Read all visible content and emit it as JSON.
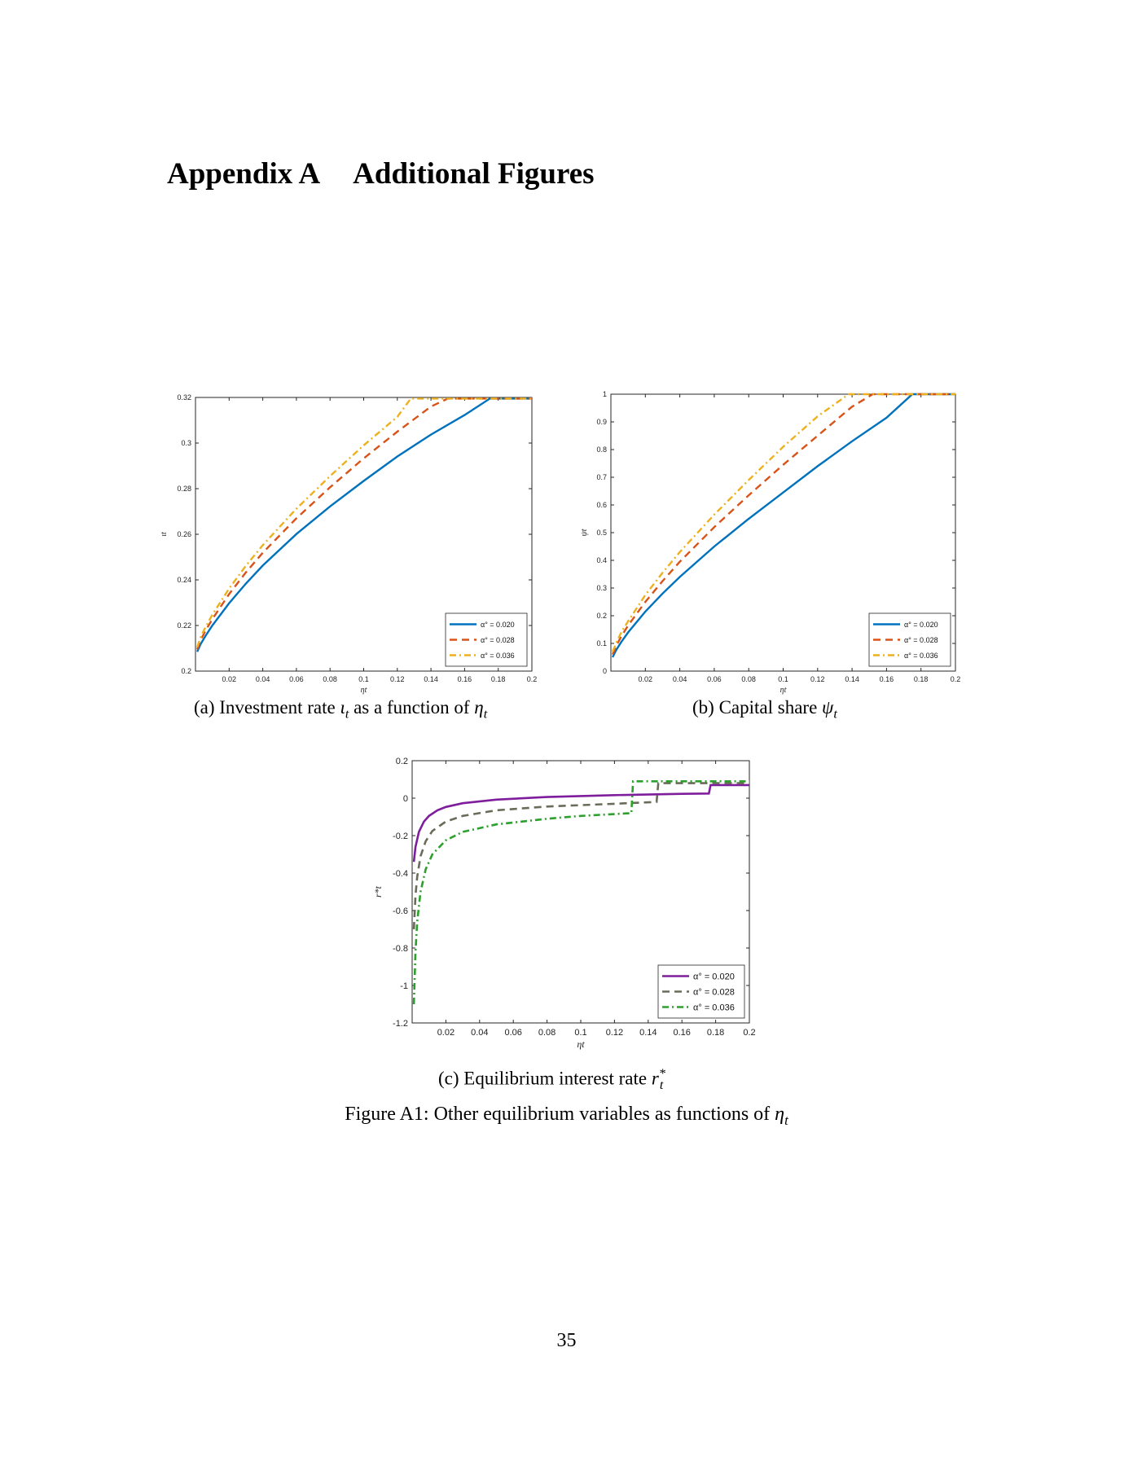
{
  "heading": {
    "number": "Appendix A",
    "title": "Additional Figures"
  },
  "figure_caption": {
    "label": "Figure A1:",
    "text": "Other equilibrium variables as functions of",
    "symbol": "η",
    "sub": "t"
  },
  "page_number": "35",
  "colors": {
    "series_a": "#0072BD",
    "series_b": "#D95319",
    "series_c": "#EDB120",
    "series_c1": "#7E1E9C",
    "series_c2": "#6B6B5A",
    "series_c3": "#2CA02C"
  },
  "subcaptions": {
    "a": {
      "prefix": "(a) Investment rate",
      "symbol": "ι",
      "sub": "t",
      "mid": "as a function of",
      "symbol2": "η",
      "sub2": "t"
    },
    "b": {
      "prefix": "(b) Capital share",
      "symbol": "ψ",
      "sub": "t"
    },
    "c": {
      "prefix": "(c) Equilibrium interest rate",
      "symbol": "r",
      "sup": "*",
      "sub": "t"
    }
  },
  "chart_data": [
    {
      "id": "a",
      "type": "line",
      "xlabel": "ηt",
      "ylabel": "ιt",
      "xlim": [
        0,
        0.2
      ],
      "ylim": [
        0.2,
        0.32
      ],
      "xticks": [
        0.02,
        0.04,
        0.06,
        0.08,
        0.1,
        0.12,
        0.14,
        0.16,
        0.18,
        0.2
      ],
      "xticklabels": [
        "0.02",
        "0.04",
        "0.06",
        "0.08",
        "0.1",
        "0.12",
        "0.14",
        "0.16",
        "0.18",
        "0.2"
      ],
      "yticks": [
        0.2,
        0.22,
        0.24,
        0.26,
        0.28,
        0.3,
        0.32
      ],
      "yticklabels": [
        "0.2",
        "0.22",
        "0.24",
        "0.26",
        "0.28",
        "0.3",
        "0.32"
      ],
      "grid": false,
      "legend_position": "bottom-right",
      "series": [
        {
          "name": "α° = 0.020",
          "style": "solid",
          "color": "#0072BD",
          "x": [
            0.001,
            0.003,
            0.006,
            0.01,
            0.02,
            0.03,
            0.04,
            0.06,
            0.08,
            0.1,
            0.12,
            0.14,
            0.16,
            0.175,
            0.2
          ],
          "y": [
            0.2085,
            0.2118,
            0.2155,
            0.22,
            0.2298,
            0.2384,
            0.2463,
            0.2601,
            0.2722,
            0.2834,
            0.2941,
            0.3037,
            0.3123,
            0.3195,
            0.3195
          ]
        },
        {
          "name": "α° = 0.028",
          "style": "dashed",
          "color": "#D95319",
          "x": [
            0.001,
            0.003,
            0.006,
            0.01,
            0.02,
            0.03,
            0.04,
            0.06,
            0.08,
            0.1,
            0.12,
            0.14,
            0.15,
            0.2
          ],
          "y": [
            0.2095,
            0.2135,
            0.2178,
            0.2228,
            0.2338,
            0.2433,
            0.2519,
            0.267,
            0.2806,
            0.2933,
            0.305,
            0.316,
            0.3195,
            0.3195
          ]
        },
        {
          "name": "α° = 0.036",
          "style": "dashdot",
          "color": "#EDB120",
          "x": [
            0.001,
            0.003,
            0.006,
            0.01,
            0.02,
            0.03,
            0.04,
            0.06,
            0.08,
            0.1,
            0.12,
            0.128,
            0.2
          ],
          "y": [
            0.2105,
            0.2148,
            0.2194,
            0.2247,
            0.2362,
            0.2462,
            0.2552,
            0.2712,
            0.2855,
            0.299,
            0.3115,
            0.3195,
            0.3195
          ]
        }
      ]
    },
    {
      "id": "b",
      "type": "line",
      "xlabel": "ηt",
      "ylabel": "ψt",
      "xlim": [
        0,
        0.2
      ],
      "ylim": [
        0,
        1
      ],
      "xticks": [
        0.02,
        0.04,
        0.06,
        0.08,
        0.1,
        0.12,
        0.14,
        0.16,
        0.18,
        0.2
      ],
      "xticklabels": [
        "0.02",
        "0.04",
        "0.06",
        "0.08",
        "0.1",
        "0.12",
        "0.14",
        "0.16",
        "0.18",
        "0.2"
      ],
      "yticks": [
        0,
        0.1,
        0.2,
        0.3,
        0.4,
        0.5,
        0.6,
        0.7,
        0.8,
        0.9,
        1
      ],
      "yticklabels": [
        "0",
        "0.1",
        "0.2",
        "0.3",
        "0.4",
        "0.5",
        "0.6",
        "0.7",
        "0.8",
        "0.9",
        "1"
      ],
      "grid": false,
      "legend_position": "bottom-right",
      "series": [
        {
          "name": "α° = 0.020",
          "style": "solid",
          "color": "#0072BD",
          "x": [
            0.001,
            0.003,
            0.006,
            0.01,
            0.02,
            0.03,
            0.04,
            0.06,
            0.08,
            0.1,
            0.12,
            0.14,
            0.16,
            0.175,
            0.2
          ],
          "y": [
            0.05,
            0.075,
            0.105,
            0.14,
            0.215,
            0.28,
            0.34,
            0.45,
            0.55,
            0.645,
            0.74,
            0.83,
            0.915,
            1.0,
            1.0
          ]
        },
        {
          "name": "α° = 0.028",
          "style": "dashed",
          "color": "#D95319",
          "x": [
            0.001,
            0.003,
            0.006,
            0.01,
            0.02,
            0.03,
            0.04,
            0.06,
            0.08,
            0.1,
            0.12,
            0.14,
            0.152,
            0.2
          ],
          "y": [
            0.06,
            0.09,
            0.125,
            0.165,
            0.25,
            0.325,
            0.395,
            0.52,
            0.635,
            0.745,
            0.85,
            0.955,
            1.0,
            1.0
          ]
        },
        {
          "name": "α° = 0.036",
          "style": "dashdot",
          "color": "#EDB120",
          "x": [
            0.001,
            0.003,
            0.006,
            0.01,
            0.02,
            0.03,
            0.04,
            0.06,
            0.08,
            0.1,
            0.12,
            0.138,
            0.2
          ],
          "y": [
            0.07,
            0.1,
            0.14,
            0.18,
            0.275,
            0.355,
            0.43,
            0.565,
            0.69,
            0.81,
            0.92,
            1.0,
            1.0
          ]
        }
      ]
    },
    {
      "id": "c",
      "type": "line",
      "xlabel": "ηt",
      "ylabel": "r*t",
      "xlim": [
        0,
        0.2
      ],
      "ylim": [
        -1.2,
        0.2
      ],
      "xticks": [
        0.02,
        0.04,
        0.06,
        0.08,
        0.1,
        0.12,
        0.14,
        0.16,
        0.18,
        0.2
      ],
      "xticklabels": [
        "0.02",
        "0.04",
        "0.06",
        "0.08",
        "0.1",
        "0.12",
        "0.14",
        "0.16",
        "0.18",
        "0.2"
      ],
      "yticks": [
        -1.2,
        -1,
        -0.8,
        -0.6,
        -0.4,
        -0.2,
        0,
        0.2
      ],
      "yticklabels": [
        "-1.2",
        "-1",
        "-0.8",
        "-0.6",
        "-0.4",
        "-0.2",
        "0",
        "0.2"
      ],
      "grid": false,
      "legend_position": "bottom-right",
      "series": [
        {
          "name": "α° = 0.020",
          "style": "solid",
          "color": "#7E1E9C",
          "x": [
            0.001,
            0.002,
            0.004,
            0.007,
            0.01,
            0.015,
            0.02,
            0.03,
            0.05,
            0.08,
            0.12,
            0.16,
            0.176,
            0.177,
            0.2
          ],
          "y": [
            -0.34,
            -0.26,
            -0.18,
            -0.125,
            -0.095,
            -0.065,
            -0.047,
            -0.027,
            -0.008,
            0.006,
            0.016,
            0.023,
            0.025,
            0.07,
            0.07
          ]
        },
        {
          "name": "α° = 0.028",
          "style": "dashed",
          "color": "#6B6B5A",
          "x": [
            0.001,
            0.002,
            0.003,
            0.005,
            0.008,
            0.012,
            0.02,
            0.03,
            0.05,
            0.08,
            0.12,
            0.145,
            0.146,
            0.2
          ],
          "y": [
            -0.7,
            -0.52,
            -0.42,
            -0.31,
            -0.23,
            -0.175,
            -0.125,
            -0.095,
            -0.065,
            -0.045,
            -0.03,
            -0.02,
            0.08,
            0.08
          ]
        },
        {
          "name": "α° = 0.036",
          "style": "dashdot",
          "color": "#2CA02C",
          "x": [
            0.001,
            0.002,
            0.003,
            0.005,
            0.008,
            0.012,
            0.02,
            0.03,
            0.05,
            0.08,
            0.1,
            0.13,
            0.131,
            0.2
          ],
          "y": [
            -1.1,
            -0.82,
            -0.66,
            -0.5,
            -0.38,
            -0.3,
            -0.225,
            -0.18,
            -0.14,
            -0.11,
            -0.095,
            -0.08,
            0.09,
            0.09
          ]
        }
      ]
    }
  ]
}
